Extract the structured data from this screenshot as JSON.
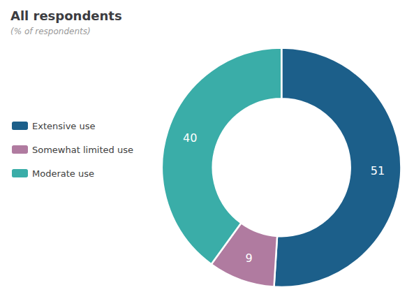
{
  "chart_data": {
    "type": "pie",
    "title": "All respondents",
    "subtitle": "(% of respondents)",
    "categories": [
      "Extensive use",
      "Somewhat limited use",
      "Moderate use"
    ],
    "values": [
      51,
      9,
      40
    ],
    "colors": [
      "#1c5f8a",
      "#b07ba0",
      "#3aada8"
    ],
    "data_labels": true,
    "legend": "left"
  }
}
